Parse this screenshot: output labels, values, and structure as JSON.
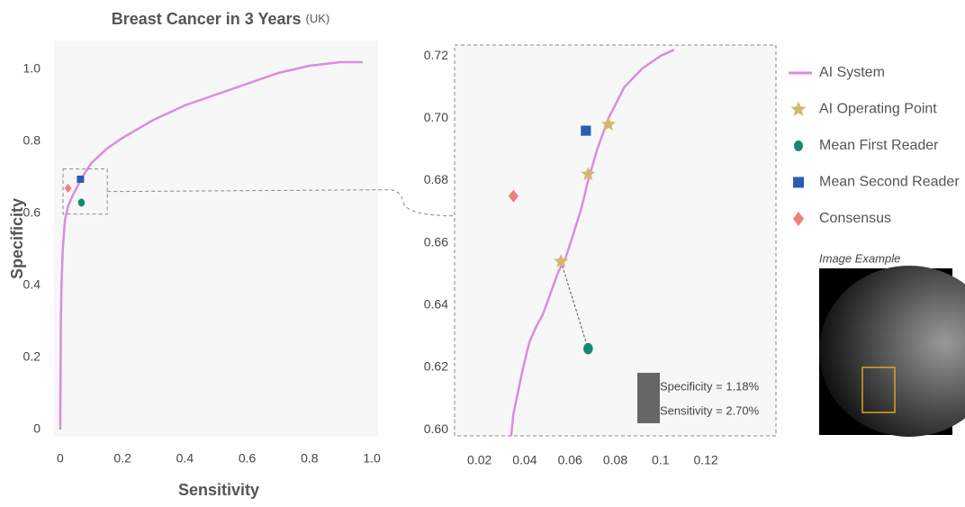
{
  "chart_data": [
    {
      "type": "line",
      "title": "Breast Cancer in 3 Years",
      "subtitle": "(UK)",
      "xlabel": "Sensitivity",
      "ylabel": "Specificity",
      "xlim": [
        -0.02,
        1.02
      ],
      "ylim": [
        -0.02,
        1.08
      ],
      "xticks": [
        0,
        0.2,
        0.4,
        0.6,
        0.8,
        {
          "value": 1,
          "label": "1.0"
        }
      ],
      "yticks": [
        0,
        0.2,
        0.4,
        0.6,
        0.8,
        {
          "value": 1,
          "label": "1.0"
        }
      ],
      "series": [
        {
          "name": "AI System",
          "color": "#d98ce0",
          "x": [
            0,
            0.002,
            0.004,
            0.008,
            0.015,
            0.025,
            0.04,
            0.07,
            0.1,
            0.15,
            0.2,
            0.3,
            0.4,
            0.5,
            0.6,
            0.7,
            0.8,
            0.9,
            0.97
          ],
          "values": [
            0,
            0.3,
            0.4,
            0.5,
            0.58,
            0.62,
            0.65,
            0.7,
            0.74,
            0.78,
            0.81,
            0.86,
            0.9,
            0.93,
            0.96,
            0.99,
            1.01,
            1.02,
            1.02
          ]
        },
        {
          "name": "Mean First Reader",
          "color": "#138a72",
          "marker": "circle",
          "x": [
            0.068
          ],
          "values": [
            0.63
          ]
        },
        {
          "name": "Mean Second Reader",
          "color": "#2a5db0",
          "marker": "square",
          "x": [
            0.065
          ],
          "values": [
            0.695
          ]
        },
        {
          "name": "Consensus",
          "color": "#f08080",
          "marker": "diamond",
          "x": [
            0.025
          ],
          "values": [
            0.67
          ]
        }
      ]
    },
    {
      "type": "line",
      "xlim": [
        0.009,
        0.151
      ],
      "ylim": [
        0.598,
        0.7235
      ],
      "xticks": [
        0.02,
        0.04,
        0.06,
        0.08,
        0.1,
        0.12
      ],
      "yticks": [
        {
          "value": 0.6,
          "label": "0.60"
        },
        0.62,
        0.64,
        0.66,
        0.68,
        {
          "value": 0.7,
          "label": "0.70"
        },
        0.72
      ],
      "series": [
        {
          "name": "AI System",
          "color": "#d98ce0",
          "x": [
            0.034,
            0.035,
            0.037,
            0.039,
            0.042,
            0.045,
            0.048,
            0.052,
            0.055,
            0.058,
            0.062,
            0.065,
            0.068,
            0.072,
            0.077,
            0.084,
            0.092,
            0.1,
            0.106
          ],
          "values": [
            0.598,
            0.605,
            0.612,
            0.619,
            0.628,
            0.633,
            0.637,
            0.645,
            0.651,
            0.655,
            0.664,
            0.671,
            0.68,
            0.69,
            0.7,
            0.71,
            0.716,
            0.72,
            0.722
          ]
        },
        {
          "name": "AI Operating Point",
          "color": "#d4b86a",
          "marker": "star",
          "x": [
            0.056,
            0.068,
            0.077
          ],
          "values": [
            0.654,
            0.682,
            0.698
          ]
        },
        {
          "name": "Mean First Reader",
          "color": "#138a72",
          "marker": "circle",
          "x": [
            0.068
          ],
          "values": [
            0.626
          ]
        },
        {
          "name": "Mean Second Reader",
          "color": "#2a5db0",
          "marker": "square",
          "x": [
            0.067
          ],
          "values": [
            0.696
          ]
        },
        {
          "name": "Consensus",
          "color": "#f08080",
          "marker": "diamond",
          "x": [
            0.035
          ],
          "values": [
            0.675
          ]
        }
      ],
      "annotations": [
        "Specificity = 1.18%",
        "Sensitivity = 2.70%"
      ]
    }
  ],
  "image_label": "Image Example"
}
